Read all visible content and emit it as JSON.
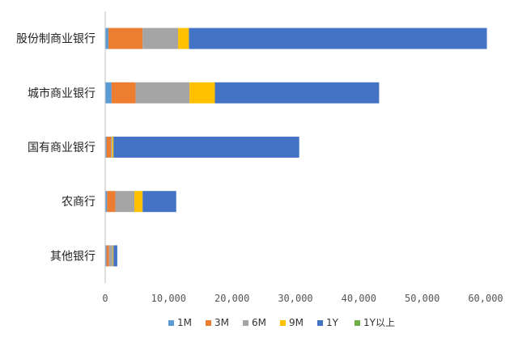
{
  "chart_data": {
    "type": "bar",
    "orientation": "horizontal",
    "stacked": true,
    "categories": [
      "股份制商业银行",
      "城市商业银行",
      "国有商业银行",
      "农商行",
      "其他银行"
    ],
    "series": [
      {
        "name": "1M",
        "color": "#5B9BD5",
        "values": [
          500,
          1000,
          200,
          300,
          200
        ]
      },
      {
        "name": "3M",
        "color": "#ED7D31",
        "values": [
          5400,
          3800,
          700,
          1300,
          400
        ]
      },
      {
        "name": "6M",
        "color": "#A5A5A5",
        "values": [
          5600,
          8500,
          200,
          3000,
          600
        ]
      },
      {
        "name": "9M",
        "color": "#FFC000",
        "values": [
          1700,
          4000,
          200,
          1300,
          100
        ]
      },
      {
        "name": "1Y",
        "color": "#4472C4",
        "values": [
          47000,
          25900,
          29300,
          5300,
          600
        ]
      },
      {
        "name": "1Y以上",
        "color": "#70AD47",
        "values": [
          0,
          0,
          0,
          0,
          0
        ]
      }
    ],
    "x_ticks": [
      "0",
      "10,000",
      "20,000",
      "30,000",
      "40,000",
      "50,000",
      "60,000"
    ],
    "xlim": [
      0,
      60000
    ],
    "grid": false,
    "legend_position": "bottom"
  }
}
